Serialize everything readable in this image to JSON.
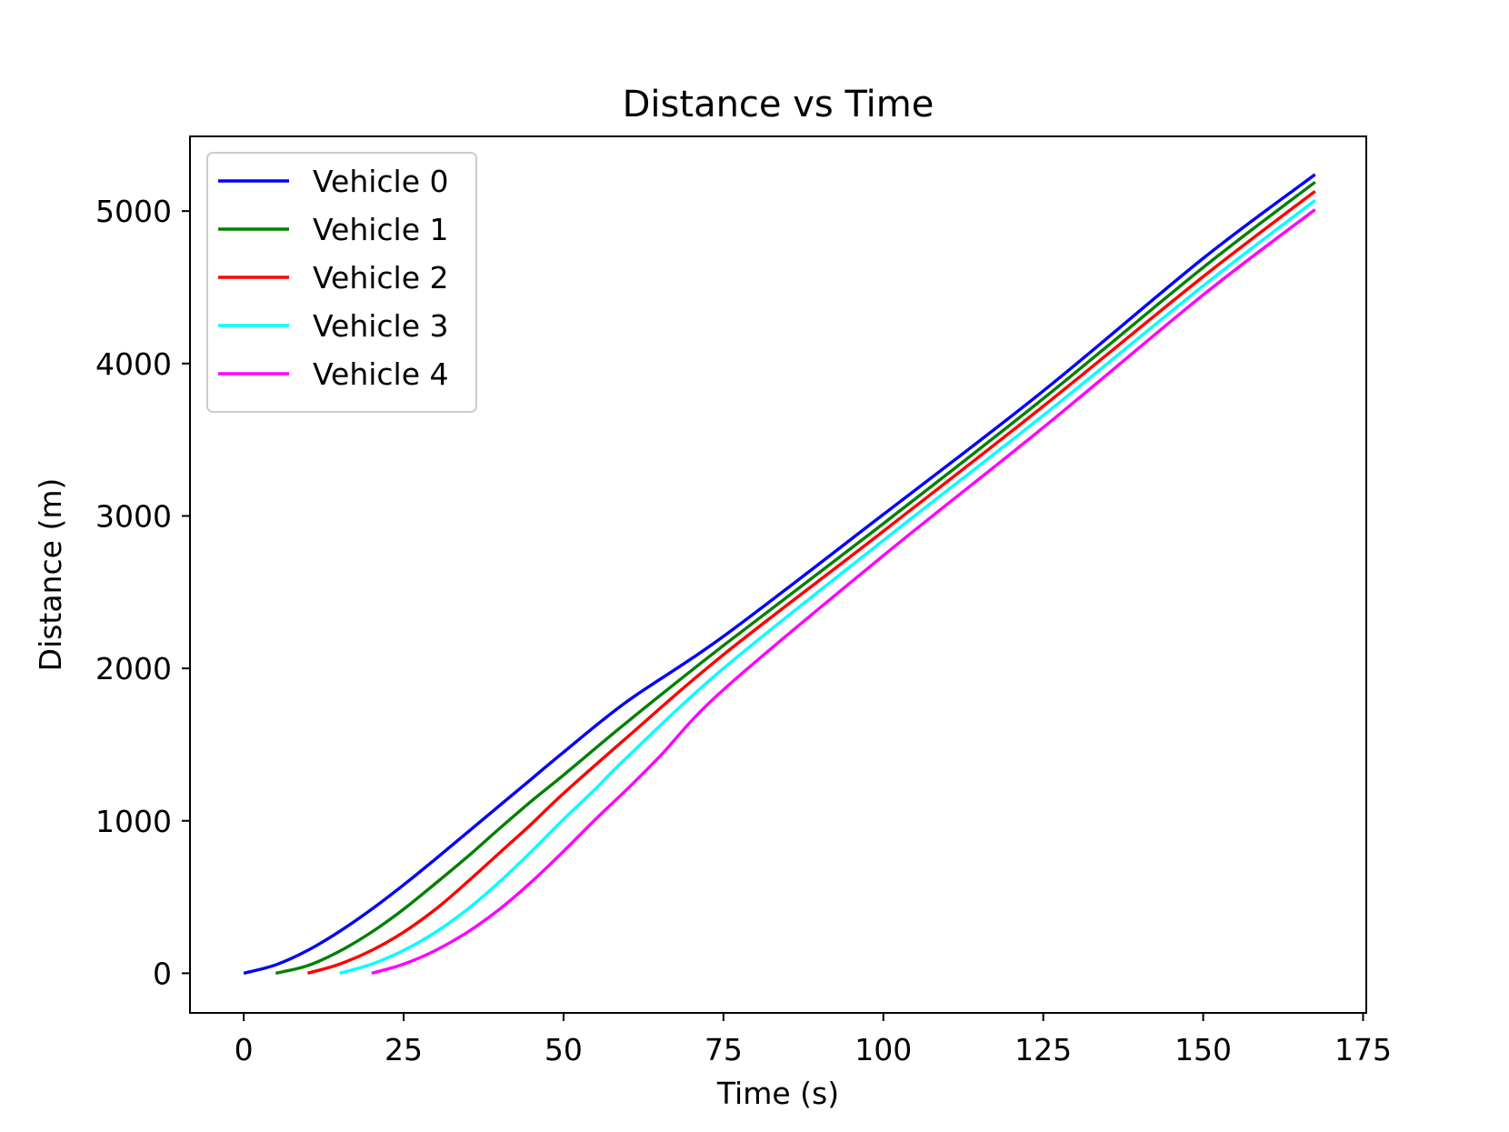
{
  "chart_data": {
    "type": "line",
    "title": "Distance vs Time",
    "xlabel": "Time (s)",
    "ylabel": "Distance (m)",
    "xlim": [
      -8.4,
      175.5
    ],
    "ylim": [
      -260,
      5490
    ],
    "xticks": [
      0,
      25,
      50,
      75,
      100,
      125,
      150,
      175
    ],
    "yticks": [
      0,
      1000,
      2000,
      3000,
      4000,
      5000
    ],
    "grid": false,
    "legend": "upper-left",
    "series": [
      {
        "name": "Vehicle 0",
        "color": "#0000ff",
        "points": [
          [
            0,
            0
          ],
          [
            5,
            55
          ],
          [
            10,
            150
          ],
          [
            15,
            275
          ],
          [
            20,
            420
          ],
          [
            25,
            580
          ],
          [
            30,
            750
          ],
          [
            35,
            925
          ],
          [
            40,
            1100
          ],
          [
            45,
            1275
          ],
          [
            50,
            1450
          ],
          [
            60,
            1785
          ],
          [
            75,
            2210
          ],
          [
            100,
            3010
          ],
          [
            125,
            3820
          ],
          [
            150,
            4690
          ],
          [
            167.5,
            5240
          ]
        ]
      },
      {
        "name": "Vehicle 1",
        "color": "#008000",
        "points": [
          [
            5,
            0
          ],
          [
            10,
            50
          ],
          [
            15,
            145
          ],
          [
            20,
            270
          ],
          [
            25,
            420
          ],
          [
            30,
            590
          ],
          [
            35,
            765
          ],
          [
            40,
            950
          ],
          [
            45,
            1130
          ],
          [
            50,
            1300
          ],
          [
            60,
            1650
          ],
          [
            75,
            2150
          ],
          [
            100,
            2950
          ],
          [
            125,
            3770
          ],
          [
            150,
            4630
          ],
          [
            167.5,
            5190
          ]
        ]
      },
      {
        "name": "Vehicle 2",
        "color": "#ff0000",
        "points": [
          [
            10,
            0
          ],
          [
            15,
            60
          ],
          [
            20,
            150
          ],
          [
            25,
            270
          ],
          [
            30,
            420
          ],
          [
            35,
            600
          ],
          [
            40,
            790
          ],
          [
            45,
            980
          ],
          [
            50,
            1180
          ],
          [
            60,
            1550
          ],
          [
            75,
            2090
          ],
          [
            100,
            2900
          ],
          [
            125,
            3720
          ],
          [
            150,
            4570
          ],
          [
            167.5,
            5130
          ]
        ]
      },
      {
        "name": "Vehicle 3",
        "color": "#00ffff",
        "points": [
          [
            15,
            0
          ],
          [
            20,
            60
          ],
          [
            25,
            150
          ],
          [
            30,
            270
          ],
          [
            35,
            420
          ],
          [
            40,
            600
          ],
          [
            45,
            800
          ],
          [
            50,
            1010
          ],
          [
            55,
            1210
          ],
          [
            60,
            1420
          ],
          [
            75,
            2000
          ],
          [
            100,
            2840
          ],
          [
            125,
            3660
          ],
          [
            150,
            4510
          ],
          [
            167.5,
            5070
          ]
        ]
      },
      {
        "name": "Vehicle 4",
        "color": "#ff00ff",
        "points": [
          [
            20,
            0
          ],
          [
            25,
            60
          ],
          [
            30,
            150
          ],
          [
            35,
            270
          ],
          [
            40,
            420
          ],
          [
            45,
            600
          ],
          [
            50,
            800
          ],
          [
            55,
            1010
          ],
          [
            60,
            1210
          ],
          [
            65,
            1420
          ],
          [
            75,
            1860
          ],
          [
            100,
            2740
          ],
          [
            125,
            3580
          ],
          [
            150,
            4450
          ],
          [
            167.5,
            5010
          ]
        ]
      }
    ]
  }
}
